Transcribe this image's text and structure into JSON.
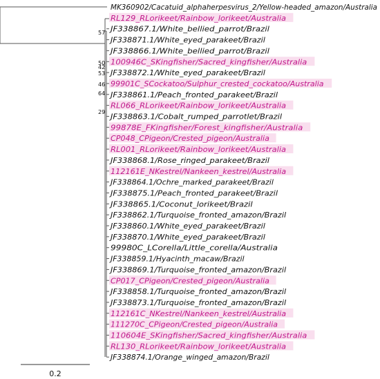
{
  "tree": {
    "leaves": [
      {
        "label": "MK360902/Cacatuid_alphaherpesvirus_2/Yellow-headed_amazon/Australia",
        "highlight": false
      },
      {
        "label": "RL129_RLorikeet/Rainbow_lorikeet/Australia",
        "highlight": true
      },
      {
        "label": "JF338867.1/White_bellied_parrot/Brazil",
        "highlight": false
      },
      {
        "label": "JF338871.1/White_eyed_parakeet/Brazil",
        "highlight": false
      },
      {
        "label": "JF338866.1/White_bellied_parrot/Brazil",
        "highlight": false
      },
      {
        "label": "100946C_SKingfisher/Sacred_kingfisher/Australia",
        "highlight": true
      },
      {
        "label": "JF338872.1/White_eyed_parakeet/Brazil",
        "highlight": false
      },
      {
        "label": "99901C_SCockatoo/Sulphur_crested_cockatoo/Australia",
        "highlight": true
      },
      {
        "label": "JF338861.1/Peach_fronted_parakeet/Brazil",
        "highlight": false
      },
      {
        "label": "RL066_RLorikeet/Rainbow_lorikeet/Australia",
        "highlight": true
      },
      {
        "label": "JF338863.1/Cobalt_rumped_parrotlet/Brazil",
        "highlight": false
      },
      {
        "label": "99878E_FKingfisher/Forest_kingfisher/Australia",
        "highlight": true
      },
      {
        "label": "CP048_CPigeon/Crested_pigeon/Australia",
        "highlight": true
      },
      {
        "label": "RL001_RLorikeet/Rainbow_lorikeet/Australia",
        "highlight": true
      },
      {
        "label": "JF338868.1/Rose_ringed_parakeet/Brazil",
        "highlight": false
      },
      {
        "label": "112161E_NKestrel/Nankeen_kestrel/Australia",
        "highlight": true
      },
      {
        "label": "JF338864.1/Ochre_marked_parakeet/Brazil",
        "highlight": false
      },
      {
        "label": "JF338875.1/Peach_fronted_parakeet/Brazil",
        "highlight": false
      },
      {
        "label": "JF338865.1/Coconut_lorikeet/Brazil",
        "highlight": false
      },
      {
        "label": "JF338862.1/Turquoise_fronted_amazon/Brazil",
        "highlight": false
      },
      {
        "label": "JF338860.1/White_eyed_parakeet/Brazil",
        "highlight": false
      },
      {
        "label": "JF338870.1/White_eyed_parakeet/Brazil",
        "highlight": false
      },
      {
        "label": "99980C_LCorella/Little_corella/Australia",
        "highlight": false
      },
      {
        "label": "JF338859.1/Hyacinth_macaw/Brazil",
        "highlight": false
      },
      {
        "label": "JF338869.1/Turquoise_fronted_amazon/Brazil",
        "highlight": false
      },
      {
        "label": "CP017_CPigeon/Crested_pigeon/Australia",
        "highlight": true
      },
      {
        "label": "JF338858.1/Turquoise_fronted_amazon/Brazil",
        "highlight": false
      },
      {
        "label": "JF338873.1/Turquoise_fronted_amazon/Brazil",
        "highlight": false
      },
      {
        "label": "112161C_NKestrel/Nankeen_kestrel/Australia",
        "highlight": true
      },
      {
        "label": "111270C_CPigeon/Crested_pigeon/Australia",
        "highlight": true
      },
      {
        "label": "110604E_SKingfisher/Sacred_kingfisher/Australia",
        "highlight": true
      },
      {
        "label": "RL130_RLorikeet/Rainbow_lorikeet/Australia",
        "highlight": true
      },
      {
        "label": "JF338874.1/Orange_winged_amazon/Brazil",
        "highlight": false
      }
    ],
    "bootstrap": [
      "57",
      "50",
      "42",
      "53",
      "46",
      "64",
      "29"
    ],
    "scale_bar_label": "0.2"
  },
  "colors": {
    "highlight_text": "#c0168a",
    "normal_text": "#111111",
    "branch": "#555555"
  }
}
